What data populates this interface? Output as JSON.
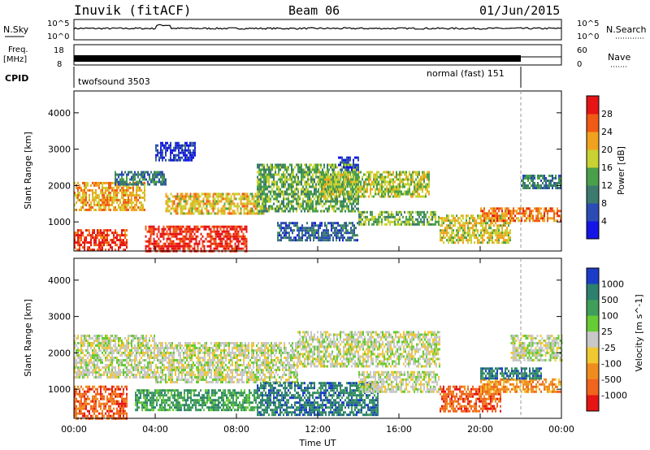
{
  "header": {
    "station": "Inuvik (fitACF)",
    "beam": "Beam 06",
    "date": "01/Jun/2015"
  },
  "strip_labels": {
    "nsky": "N.Sky",
    "nsky_ticks": [
      "10^5",
      "10^0"
    ],
    "nsearch": "N.Search",
    "nsearch_ticks": [
      "10^5",
      "10^0"
    ],
    "freq_label": "Freq.",
    "freq_unit": "[MHz]",
    "freq_ticks": [
      "18",
      "8"
    ],
    "nave": "Nave",
    "nave_ticks": [
      "60",
      "0"
    ],
    "cpid": "CPID",
    "cpid_segments": [
      {
        "label": "twofsound 3503",
        "start_hour": 0,
        "end_hour": 22.0
      },
      {
        "label": "normal (fast) 151",
        "start_hour": 22.0,
        "end_hour": 24.0
      }
    ]
  },
  "chart_data": [
    {
      "type": "heatmap",
      "name": "power",
      "ylabel": "Slant Range [km]",
      "xlim": [
        0,
        24
      ],
      "ylim": [
        200,
        4600
      ],
      "y_ticks": [
        "1000",
        "2000",
        "3000",
        "4000"
      ],
      "y_tick_values": [
        1000,
        2000,
        3000,
        4000
      ],
      "colorbar": {
        "label": "Power [dB]",
        "ticks": [
          "4",
          "8",
          "12",
          "16",
          "20",
          "24",
          "28"
        ],
        "tick_values": [
          4,
          8,
          12,
          16,
          20,
          24,
          28
        ],
        "range": [
          0,
          32
        ],
        "colors": [
          "#1515e6",
          "#2a4cb4",
          "#3c7a6e",
          "#4aa04a",
          "#c8d232",
          "#f0a21e",
          "#f05a14",
          "#e61414"
        ]
      },
      "regions": [
        {
          "t0": 0.0,
          "t1": 2.6,
          "r0": 200,
          "r1": 800,
          "v": 28
        },
        {
          "t0": 3.5,
          "t1": 8.5,
          "r0": 200,
          "r1": 900,
          "v": 29
        },
        {
          "t0": 0.0,
          "t1": 3.5,
          "r0": 1300,
          "r1": 2100,
          "v": 22
        },
        {
          "t0": 2.0,
          "t1": 4.5,
          "r0": 2000,
          "r1": 2400,
          "v": 10
        },
        {
          "t0": 4.5,
          "t1": 9.5,
          "r0": 1200,
          "r1": 1800,
          "v": 20
        },
        {
          "t0": 9.0,
          "t1": 14.0,
          "r0": 1300,
          "r1": 2600,
          "v": 14
        },
        {
          "t0": 12.0,
          "t1": 17.5,
          "r0": 1700,
          "r1": 2400,
          "v": 17
        },
        {
          "t0": 14.0,
          "t1": 18.0,
          "r0": 900,
          "r1": 1300,
          "v": 15
        },
        {
          "t0": 10.0,
          "t1": 14.0,
          "r0": 500,
          "r1": 1000,
          "v": 8
        },
        {
          "t0": 18.0,
          "t1": 21.5,
          "r0": 400,
          "r1": 1200,
          "v": 19
        },
        {
          "t0": 20.0,
          "t1": 24.0,
          "r0": 1000,
          "r1": 1400,
          "v": 24
        },
        {
          "t0": 22.0,
          "t1": 24.0,
          "r0": 1900,
          "r1": 2300,
          "v": 10
        },
        {
          "t0": 4.0,
          "t1": 6.0,
          "r0": 2700,
          "r1": 3200,
          "v": 4
        },
        {
          "t0": 13.0,
          "t1": 14.0,
          "r0": 2400,
          "r1": 2800,
          "v": 5
        }
      ]
    },
    {
      "type": "heatmap",
      "name": "velocity",
      "ylabel": "Slant Range [km]",
      "xlabel": "Time UT",
      "xlim": [
        0,
        24
      ],
      "ylim": [
        200,
        4600
      ],
      "x_ticks": [
        "00:00",
        "04:00",
        "08:00",
        "12:00",
        "16:00",
        "20:00",
        "00:00"
      ],
      "x_tick_values": [
        0,
        4,
        8,
        12,
        16,
        20,
        24
      ],
      "y_ticks": [
        "1000",
        "2000",
        "3000",
        "4000"
      ],
      "y_tick_values": [
        1000,
        2000,
        3000,
        4000
      ],
      "colorbar": {
        "label": "Velocity [m s^-1]",
        "ticks": [
          "1000",
          "500",
          "100",
          "25",
          "-25",
          "-100",
          "-500",
          "-1000"
        ],
        "colors": [
          "#1b3cc8",
          "#2d7f6e",
          "#3f9e5a",
          "#66cc33",
          "#c8c8c8",
          "#f0c832",
          "#f08c1e",
          "#f0641e",
          "#e61414"
        ]
      },
      "regions": [
        {
          "t0": 0.0,
          "t1": 2.6,
          "r0": 200,
          "r1": 1100,
          "c": 7
        },
        {
          "t0": 3.0,
          "t1": 9.0,
          "r0": 400,
          "r1": 1000,
          "c": 2
        },
        {
          "t0": 0.0,
          "t1": 4.0,
          "r0": 1300,
          "r1": 2500,
          "c": 4
        },
        {
          "t0": 4.0,
          "t1": 11.0,
          "r0": 1200,
          "r1": 2300,
          "c": 4
        },
        {
          "t0": 9.0,
          "t1": 15.0,
          "r0": 300,
          "r1": 1200,
          "c": 1
        },
        {
          "t0": 11.0,
          "t1": 18.0,
          "r0": 1600,
          "r1": 2600,
          "c": 4
        },
        {
          "t0": 14.0,
          "t1": 18.0,
          "r0": 900,
          "r1": 1500,
          "c": 4
        },
        {
          "t0": 18.0,
          "t1": 21.0,
          "r0": 400,
          "r1": 1100,
          "c": 7
        },
        {
          "t0": 20.0,
          "t1": 24.0,
          "r0": 900,
          "r1": 1300,
          "c": 6
        },
        {
          "t0": 20.0,
          "t1": 23.0,
          "r0": 1300,
          "r1": 1600,
          "c": 1
        },
        {
          "t0": 21.5,
          "t1": 24.0,
          "r0": 1800,
          "r1": 2500,
          "c": 4
        }
      ]
    }
  ]
}
